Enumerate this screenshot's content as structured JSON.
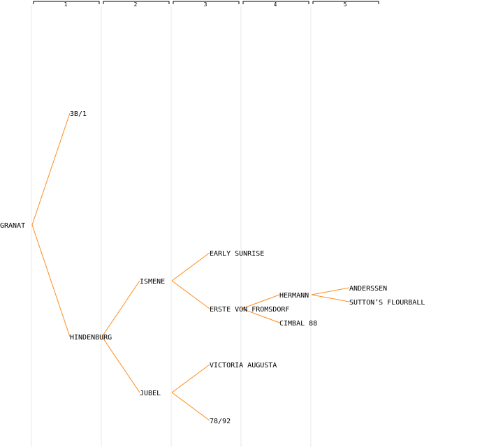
{
  "generations": [
    "1",
    "2",
    "3",
    "4",
    "5"
  ],
  "colors": {
    "edge": "#ff8c1a",
    "column_line": "#e8e8e8",
    "text": "#000000",
    "background": "#ffffff"
  },
  "tree": {
    "label": "GRANAT",
    "children": [
      {
        "label": "3B/1",
        "children": []
      },
      {
        "label": "HINDENBURG",
        "children": [
          {
            "label": "ISMENE",
            "children": [
              {
                "label": "EARLY SUNRISE",
                "children": []
              },
              {
                "label": "ERSTE VON FROMSDORF",
                "children": [
                  {
                    "label": "HERMANN",
                    "children": [
                      {
                        "label": "ANDERSSEN",
                        "children": []
                      },
                      {
                        "label": "SUTTON'S FLOURBALL",
                        "children": []
                      }
                    ]
                  },
                  {
                    "label": "CIMBAL 88",
                    "children": []
                  }
                ]
              }
            ]
          },
          {
            "label": "JUBEL",
            "children": [
              {
                "label": "VICTORIA AUGUSTA",
                "children": []
              },
              {
                "label": "78/92",
                "children": []
              }
            ]
          }
        ]
      }
    ]
  }
}
